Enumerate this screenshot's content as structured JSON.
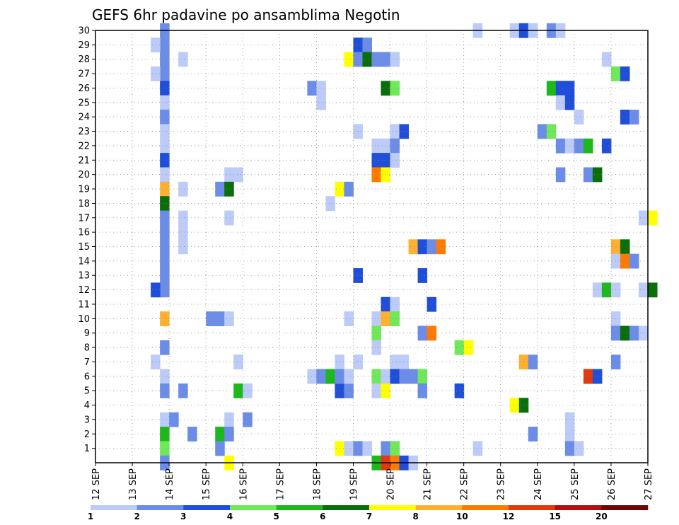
{
  "chart_data": {
    "type": "heatmap",
    "title": "GEFS 6hr padavine po ansamblima Negotin",
    "xlabel": "",
    "ylabel": "",
    "x_ticks": [
      "12 SEP",
      "13 SEP",
      "14 SEP",
      "15 SEP",
      "16 SEP",
      "17 SEP",
      "18 SEP",
      "19 SEP",
      "20 SEP",
      "21 SEP",
      "22 SEP",
      "23 SEP",
      "24 SEP",
      "25 SEP",
      "26 SEP",
      "27 SEP"
    ],
    "y_ticks": [
      "1",
      "2",
      "3",
      "4",
      "5",
      "6",
      "7",
      "8",
      "9",
      "10",
      "11",
      "12",
      "13",
      "14",
      "15",
      "16",
      "17",
      "18",
      "19",
      "20",
      "21",
      "22",
      "23",
      "24",
      "25",
      "26",
      "27",
      "28",
      "29",
      "30"
    ],
    "grid": true,
    "legend": "bottom",
    "colorbar": {
      "labels": [
        "1",
        "2",
        "3",
        "4",
        "5",
        "6",
        "7",
        "8",
        "10",
        "12",
        "15",
        "20"
      ],
      "colors": [
        "#bccbf7",
        "#6b8de8",
        "#1f4ed8",
        "#6fe85a",
        "#1cb81c",
        "#0a6e0a",
        "#ffff00",
        "#ffb030",
        "#ff7a00",
        "#e03a10",
        "#b01010",
        "#6a0808"
      ]
    },
    "cells": [
      {
        "m": 30,
        "s": 7,
        "c": 1
      },
      {
        "m": 29,
        "s": 7,
        "c": 1
      },
      {
        "m": 28,
        "s": 7,
        "c": 1
      },
      {
        "m": 27,
        "s": 7,
        "c": 1
      },
      {
        "m": 26,
        "s": 7,
        "c": 2
      },
      {
        "m": 25,
        "s": 7,
        "c": 0
      },
      {
        "m": 24,
        "s": 7,
        "c": 1
      },
      {
        "m": 23,
        "s": 7,
        "c": 0
      },
      {
        "m": 22,
        "s": 7,
        "c": 0
      },
      {
        "m": 21,
        "s": 7,
        "c": 2
      },
      {
        "m": 20,
        "s": 7,
        "c": 0
      },
      {
        "m": 19,
        "s": 7,
        "c": 7
      },
      {
        "m": 18,
        "s": 7,
        "c": 5
      },
      {
        "m": 17,
        "s": 7,
        "c": 1
      },
      {
        "m": 16,
        "s": 7,
        "c": 1
      },
      {
        "m": 15,
        "s": 7,
        "c": 1
      },
      {
        "m": 14,
        "s": 7,
        "c": 1
      },
      {
        "m": 13,
        "s": 7,
        "c": 1
      },
      {
        "m": 12,
        "s": 7,
        "c": 1
      },
      {
        "m": 12,
        "s": 6,
        "c": 2
      },
      {
        "m": 10,
        "s": 7,
        "c": 7
      },
      {
        "m": 8,
        "s": 7,
        "c": 1
      },
      {
        "m": 6,
        "s": 7,
        "c": 0
      },
      {
        "m": 5,
        "s": 7,
        "c": 1
      },
      {
        "m": 3,
        "s": 7,
        "c": 0
      },
      {
        "m": 3,
        "s": 8,
        "c": 1
      },
      {
        "m": 2,
        "s": 7,
        "c": 4
      },
      {
        "m": 1,
        "s": 7,
        "c": 3
      },
      {
        "m": 29,
        "s": 6,
        "c": 0
      },
      {
        "m": 27,
        "s": 6,
        "c": 0
      },
      {
        "m": 7,
        "s": 6,
        "c": 0
      },
      {
        "m": 0,
        "s": 7,
        "c": 1
      },
      {
        "m": 28,
        "s": 9,
        "c": 0
      },
      {
        "m": 19,
        "s": 9,
        "c": 0
      },
      {
        "m": 17,
        "s": 9,
        "c": 0
      },
      {
        "m": 16,
        "s": 9,
        "c": 0
      },
      {
        "m": 15,
        "s": 9,
        "c": 0
      },
      {
        "m": 5,
        "s": 9,
        "c": 1
      },
      {
        "m": 2,
        "s": 10,
        "c": 1
      },
      {
        "m": 20,
        "s": 14,
        "c": 0
      },
      {
        "m": 20,
        "s": 15,
        "c": 0
      },
      {
        "m": 19,
        "s": 13,
        "c": 1
      },
      {
        "m": 19,
        "s": 14,
        "c": 5
      },
      {
        "m": 17,
        "s": 14,
        "c": 0
      },
      {
        "m": 10,
        "s": 12,
        "c": 1
      },
      {
        "m": 10,
        "s": 13,
        "c": 1
      },
      {
        "m": 10,
        "s": 14,
        "c": 0
      },
      {
        "m": 7,
        "s": 15,
        "c": 0
      },
      {
        "m": 5,
        "s": 15,
        "c": 4
      },
      {
        "m": 5,
        "s": 16,
        "c": 0
      },
      {
        "m": 3,
        "s": 14,
        "c": 0
      },
      {
        "m": 3,
        "s": 16,
        "c": 1
      },
      {
        "m": 2,
        "s": 13,
        "c": 4
      },
      {
        "m": 2,
        "s": 14,
        "c": 1
      },
      {
        "m": 1,
        "s": 13,
        "c": 1
      },
      {
        "m": 0,
        "s": 14,
        "c": 6
      },
      {
        "m": 26,
        "s": 23,
        "c": 1
      },
      {
        "m": 26,
        "s": 24,
        "c": 0
      },
      {
        "m": 25,
        "s": 24,
        "c": 0
      },
      {
        "m": 18,
        "s": 25,
        "c": 0
      },
      {
        "m": 6,
        "s": 23,
        "c": 0
      },
      {
        "m": 6,
        "s": 24,
        "c": 1
      },
      {
        "m": 6,
        "s": 25,
        "c": 4
      },
      {
        "m": 7,
        "s": 26,
        "c": 0
      },
      {
        "m": 5,
        "s": 26,
        "c": 2
      },
      {
        "m": 5,
        "s": 27,
        "c": 1
      },
      {
        "m": 6,
        "s": 26,
        "c": 1
      },
      {
        "m": 6,
        "s": 27,
        "c": 0
      },
      {
        "m": 1,
        "s": 26,
        "c": 6
      },
      {
        "m": 1,
        "s": 27,
        "c": 0
      },
      {
        "m": 1,
        "s": 28,
        "c": 1
      },
      {
        "m": 1,
        "s": 29,
        "c": 0
      },
      {
        "m": 19,
        "s": 26,
        "c": 6
      },
      {
        "m": 19,
        "s": 27,
        "c": 1
      },
      {
        "m": 10,
        "s": 27,
        "c": 0
      },
      {
        "m": 7,
        "s": 28,
        "c": 0
      },
      {
        "m": 29,
        "s": 28,
        "c": 2
      },
      {
        "m": 29,
        "s": 29,
        "c": 1
      },
      {
        "m": 28,
        "s": 27,
        "c": 6
      },
      {
        "m": 28,
        "s": 28,
        "c": 1
      },
      {
        "m": 28,
        "s": 29,
        "c": 5
      },
      {
        "m": 28,
        "s": 30,
        "c": 1
      },
      {
        "m": 28,
        "s": 31,
        "c": 1
      },
      {
        "m": 28,
        "s": 32,
        "c": 0
      },
      {
        "m": 23,
        "s": 28,
        "c": 0
      },
      {
        "m": 13,
        "s": 28,
        "c": 2
      },
      {
        "m": 26,
        "s": 31,
        "c": 5
      },
      {
        "m": 26,
        "s": 32,
        "c": 3
      },
      {
        "m": 23,
        "s": 32,
        "c": 0
      },
      {
        "m": 23,
        "s": 33,
        "c": 2
      },
      {
        "m": 22,
        "s": 30,
        "c": 0
      },
      {
        "m": 22,
        "s": 31,
        "c": 0
      },
      {
        "m": 22,
        "s": 32,
        "c": 1
      },
      {
        "m": 21,
        "s": 30,
        "c": 2
      },
      {
        "m": 21,
        "s": 31,
        "c": 2
      },
      {
        "m": 21,
        "s": 32,
        "c": 0
      },
      {
        "m": 20,
        "s": 30,
        "c": 8
      },
      {
        "m": 20,
        "s": 31,
        "c": 6
      },
      {
        "m": 15,
        "s": 34,
        "c": 7
      },
      {
        "m": 15,
        "s": 35,
        "c": 2
      },
      {
        "m": 15,
        "s": 36,
        "c": 1
      },
      {
        "m": 15,
        "s": 37,
        "c": 8
      },
      {
        "m": 13,
        "s": 35,
        "c": 2
      },
      {
        "m": 11,
        "s": 31,
        "c": 2
      },
      {
        "m": 11,
        "s": 32,
        "c": 0
      },
      {
        "m": 11,
        "s": 36,
        "c": 2
      },
      {
        "m": 10,
        "s": 30,
        "c": 0
      },
      {
        "m": 10,
        "s": 31,
        "c": 7
      },
      {
        "m": 10,
        "s": 32,
        "c": 3
      },
      {
        "m": 9,
        "s": 30,
        "c": 3
      },
      {
        "m": 9,
        "s": 35,
        "c": 1
      },
      {
        "m": 9,
        "s": 36,
        "c": 8
      },
      {
        "m": 8,
        "s": 30,
        "c": 0
      },
      {
        "m": 7,
        "s": 32,
        "c": 0
      },
      {
        "m": 7,
        "s": 33,
        "c": 0
      },
      {
        "m": 6,
        "s": 30,
        "c": 3
      },
      {
        "m": 6,
        "s": 31,
        "c": 0
      },
      {
        "m": 6,
        "s": 32,
        "c": 2
      },
      {
        "m": 6,
        "s": 33,
        "c": 1
      },
      {
        "m": 6,
        "s": 34,
        "c": 1
      },
      {
        "m": 6,
        "s": 35,
        "c": 3
      },
      {
        "m": 5,
        "s": 30,
        "c": 0
      },
      {
        "m": 5,
        "s": 31,
        "c": 6
      },
      {
        "m": 5,
        "s": 35,
        "c": 1
      },
      {
        "m": 5,
        "s": 39,
        "c": 2
      },
      {
        "m": 1,
        "s": 31,
        "c": 1
      },
      {
        "m": 1,
        "s": 32,
        "c": 3
      },
      {
        "m": 0,
        "s": 30,
        "c": 4
      },
      {
        "m": 0,
        "s": 31,
        "c": 9
      },
      {
        "m": 0,
        "s": 32,
        "c": 8
      },
      {
        "m": 0,
        "s": 33,
        "c": 2
      },
      {
        "m": 0,
        "s": 34,
        "c": 0
      },
      {
        "m": 30,
        "s": 41,
        "c": 0
      },
      {
        "m": 30,
        "s": 45,
        "c": 0
      },
      {
        "m": 30,
        "s": 46,
        "c": 2
      },
      {
        "m": 30,
        "s": 47,
        "c": 0
      },
      {
        "m": 30,
        "s": 49,
        "c": 1
      },
      {
        "m": 30,
        "s": 50,
        "c": 0
      },
      {
        "m": 26,
        "s": 49,
        "c": 4
      },
      {
        "m": 26,
        "s": 50,
        "c": 2
      },
      {
        "m": 26,
        "s": 51,
        "c": 2
      },
      {
        "m": 25,
        "s": 50,
        "c": 0
      },
      {
        "m": 25,
        "s": 51,
        "c": 2
      },
      {
        "m": 24,
        "s": 52,
        "c": 0
      },
      {
        "m": 23,
        "s": 48,
        "c": 1
      },
      {
        "m": 23,
        "s": 49,
        "c": 3
      },
      {
        "m": 22,
        "s": 50,
        "c": 1
      },
      {
        "m": 22,
        "s": 51,
        "c": 0
      },
      {
        "m": 22,
        "s": 52,
        "c": 1
      },
      {
        "m": 22,
        "s": 53,
        "c": 4
      },
      {
        "m": 22,
        "s": 55,
        "c": 2
      },
      {
        "m": 20,
        "s": 50,
        "c": 1
      },
      {
        "m": 20,
        "s": 53,
        "c": 1
      },
      {
        "m": 20,
        "s": 54,
        "c": 5
      },
      {
        "m": 8,
        "s": 39,
        "c": 3
      },
      {
        "m": 8,
        "s": 40,
        "c": 6
      },
      {
        "m": 7,
        "s": 46,
        "c": 7
      },
      {
        "m": 7,
        "s": 47,
        "c": 1
      },
      {
        "m": 6,
        "s": 53,
        "c": 9
      },
      {
        "m": 6,
        "s": 54,
        "c": 2
      },
      {
        "m": 4,
        "s": 45,
        "c": 6
      },
      {
        "m": 4,
        "s": 46,
        "c": 5
      },
      {
        "m": 3,
        "s": 51,
        "c": 0
      },
      {
        "m": 2,
        "s": 47,
        "c": 1
      },
      {
        "m": 2,
        "s": 51,
        "c": 0
      },
      {
        "m": 1,
        "s": 41,
        "c": 0
      },
      {
        "m": 1,
        "s": 51,
        "c": 1
      },
      {
        "m": 1,
        "s": 52,
        "c": 0
      },
      {
        "m": 28,
        "s": 55,
        "c": 0
      },
      {
        "m": 27,
        "s": 56,
        "c": 3
      },
      {
        "m": 27,
        "s": 57,
        "c": 2
      },
      {
        "m": 24,
        "s": 57,
        "c": 2
      },
      {
        "m": 24,
        "s": 58,
        "c": 1
      },
      {
        "m": 17,
        "s": 59,
        "c": 0
      },
      {
        "m": 17,
        "s": 60,
        "c": 6
      },
      {
        "m": 15,
        "s": 56,
        "c": 7
      },
      {
        "m": 15,
        "s": 57,
        "c": 5
      },
      {
        "m": 14,
        "s": 56,
        "c": 0
      },
      {
        "m": 14,
        "s": 57,
        "c": 8
      },
      {
        "m": 14,
        "s": 58,
        "c": 1
      },
      {
        "m": 12,
        "s": 54,
        "c": 0
      },
      {
        "m": 12,
        "s": 55,
        "c": 4
      },
      {
        "m": 12,
        "s": 56,
        "c": 0
      },
      {
        "m": 12,
        "s": 59,
        "c": 0
      },
      {
        "m": 12,
        "s": 60,
        "c": 5
      },
      {
        "m": 10,
        "s": 56,
        "c": 0
      },
      {
        "m": 9,
        "s": 56,
        "c": 1
      },
      {
        "m": 9,
        "s": 57,
        "c": 5
      },
      {
        "m": 9,
        "s": 58,
        "c": 1
      },
      {
        "m": 9,
        "s": 59,
        "c": 0
      },
      {
        "m": 7,
        "s": 56,
        "c": 1
      }
    ]
  }
}
